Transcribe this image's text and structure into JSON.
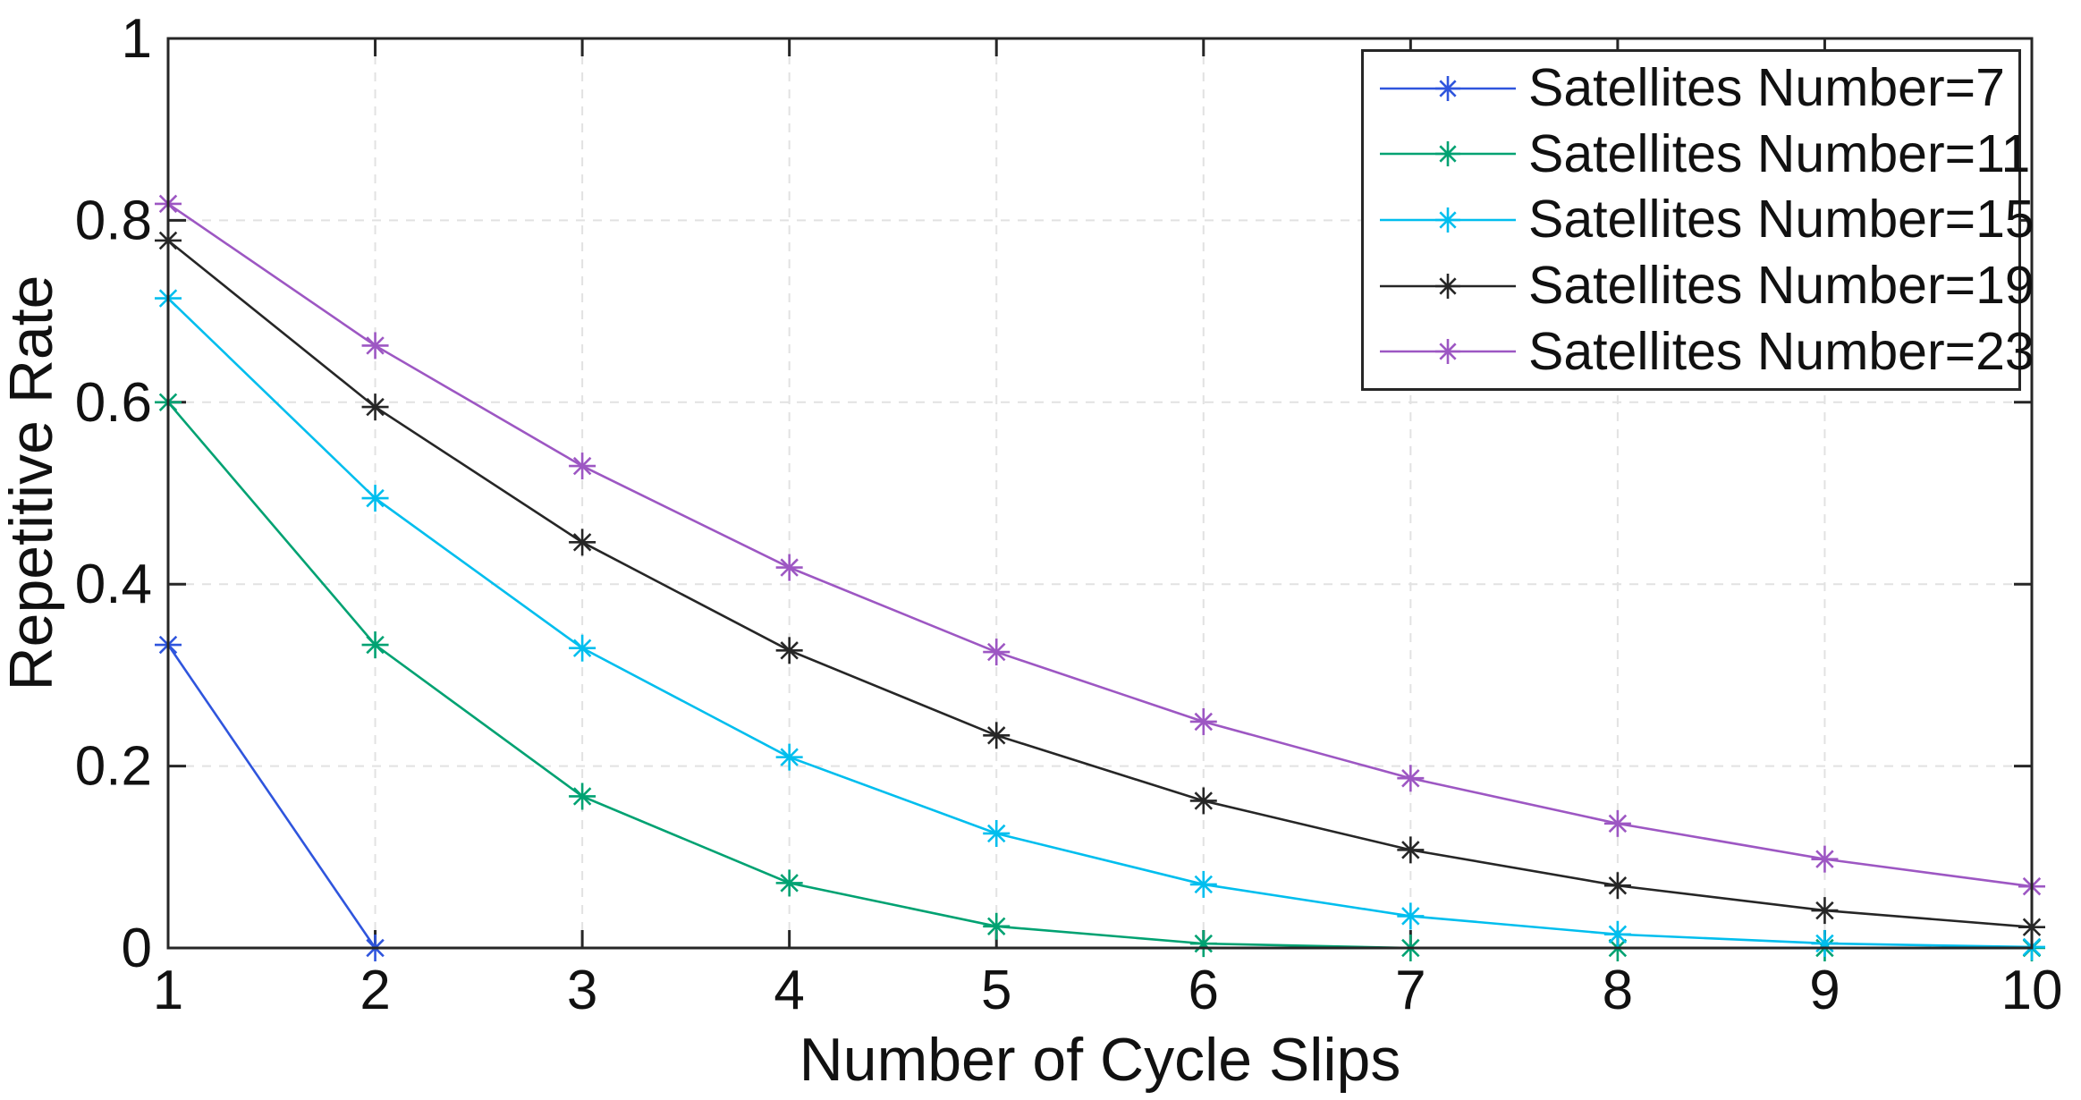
{
  "chart_data": {
    "type": "line",
    "title": "",
    "xlabel": "Number of Cycle Slips",
    "ylabel": "Repetitive Rate",
    "xlim": [
      1,
      10
    ],
    "ylim": [
      0,
      1
    ],
    "x_ticks": [
      1,
      2,
      3,
      4,
      5,
      6,
      7,
      8,
      9,
      10
    ],
    "x_tick_labels": [
      "1",
      "2",
      "3",
      "4",
      "5",
      "6",
      "7",
      "8",
      "9",
      "10"
    ],
    "y_ticks": [
      0,
      0.2,
      0.4,
      0.6,
      0.8,
      1
    ],
    "y_tick_labels": [
      "0",
      "0.2",
      "0.4",
      "0.6",
      "0.8",
      "1"
    ],
    "grid": "light dashed gridlines at interior ticks",
    "legend_position": "top-right inside plot",
    "marker": "asterisk",
    "axis_color": "#262626",
    "grid_color": "#e2e2e2",
    "series": [
      {
        "name": "Satellites Number=7",
        "color": "#2f55dd",
        "x": [
          1,
          2
        ],
        "values": [
          0.3333,
          0
        ]
      },
      {
        "name": "Satellites Number=11",
        "color": "#00a272",
        "x": [
          1,
          2,
          3,
          4,
          5,
          6,
          7,
          8,
          9,
          10
        ],
        "values": [
          0.6,
          0.3333,
          0.1667,
          0.0714,
          0.0238,
          0.0048,
          0,
          0,
          0,
          0
        ]
      },
      {
        "name": "Satellites Number=15",
        "color": "#00beee",
        "x": [
          1,
          2,
          3,
          4,
          5,
          6,
          7,
          8,
          9,
          10
        ],
        "values": [
          0.7143,
          0.4945,
          0.3297,
          0.2098,
          0.1259,
          0.0699,
          0.035,
          0.015,
          0.005,
          0.001
        ]
      },
      {
        "name": "Satellites Number=19",
        "color": "#262626",
        "x": [
          1,
          2,
          3,
          4,
          5,
          6,
          7,
          8,
          9,
          10
        ],
        "values": [
          0.7778,
          0.5948,
          0.4461,
          0.3271,
          0.2337,
          0.1618,
          0.1078,
          0.0686,
          0.0412,
          0.0229
        ]
      },
      {
        "name": "Satellites Number=23",
        "color": "#9d57c3",
        "x": [
          1,
          2,
          3,
          4,
          5,
          6,
          7,
          8,
          9,
          10
        ],
        "values": [
          0.8182,
          0.6623,
          0.5299,
          0.4183,
          0.3254,
          0.2488,
          0.1866,
          0.1368,
          0.0977,
          0.0677
        ]
      }
    ]
  }
}
